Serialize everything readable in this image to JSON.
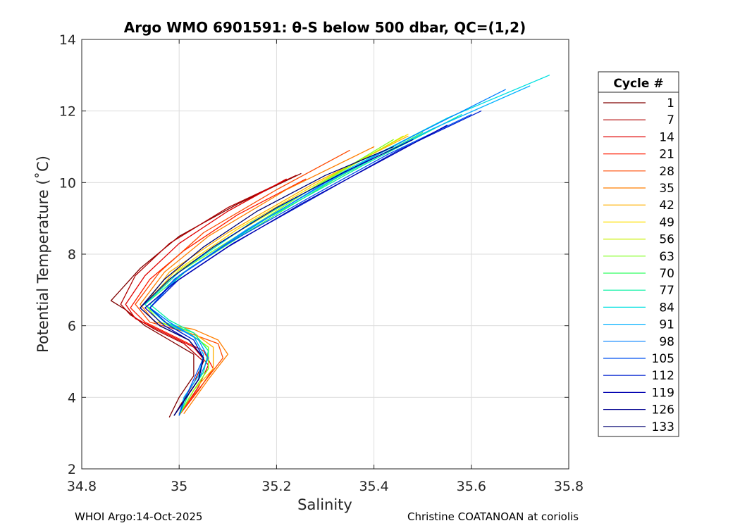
{
  "chart_data": {
    "type": "line",
    "title": "Argo WMO 6901591: θ-S below 500 dbar,  QC=(1,2)",
    "xlabel": "Salinity",
    "ylabel": "Potential Temperature (˚C)",
    "xlim": [
      34.8,
      35.8
    ],
    "ylim": [
      2,
      14
    ],
    "xticks": [
      34.8,
      35.0,
      35.2,
      35.4,
      35.6,
      35.8
    ],
    "xtick_labels": [
      "34.8",
      "35",
      "35.2",
      "35.4",
      "35.6",
      "35.8"
    ],
    "yticks": [
      2,
      4,
      6,
      8,
      10,
      12,
      14
    ],
    "ytick_labels": [
      "2",
      "4",
      "6",
      "8",
      "10",
      "12",
      "14"
    ],
    "grid": true,
    "legend_title": "Cycle #",
    "legend_position": "outside-right",
    "series": [
      {
        "name": "1",
        "color": "#800000",
        "points": [
          [
            35.25,
            10.25
          ],
          [
            35.12,
            9.4
          ],
          [
            35.0,
            8.5
          ],
          [
            34.92,
            7.6
          ],
          [
            34.86,
            6.7
          ],
          [
            34.89,
            6.45
          ],
          [
            34.93,
            6.0
          ],
          [
            34.98,
            5.6
          ],
          [
            35.03,
            5.2
          ],
          [
            35.03,
            4.6
          ],
          [
            35.0,
            4.0
          ],
          [
            34.98,
            3.45
          ]
        ]
      },
      {
        "name": "7",
        "color": "#B00000",
        "points": [
          [
            35.24,
            10.2
          ],
          [
            35.1,
            9.3
          ],
          [
            34.98,
            8.3
          ],
          [
            34.91,
            7.4
          ],
          [
            34.88,
            6.6
          ],
          [
            34.9,
            6.3
          ],
          [
            34.95,
            5.9
          ],
          [
            35.01,
            5.5
          ],
          [
            35.05,
            5.0
          ],
          [
            35.03,
            4.4
          ],
          [
            34.99,
            3.5
          ]
        ]
      },
      {
        "name": "14",
        "color": "#E00000",
        "points": [
          [
            35.22,
            10.1
          ],
          [
            35.1,
            9.2
          ],
          [
            35.0,
            8.3
          ],
          [
            34.93,
            7.4
          ],
          [
            34.89,
            6.6
          ],
          [
            34.91,
            6.2
          ],
          [
            34.97,
            5.8
          ],
          [
            35.03,
            5.4
          ],
          [
            35.06,
            4.9
          ],
          [
            35.04,
            4.3
          ],
          [
            35.0,
            3.5
          ]
        ]
      },
      {
        "name": "21",
        "color": "#FF1A00",
        "points": [
          [
            35.26,
            10.1
          ],
          [
            35.12,
            9.1
          ],
          [
            35.01,
            8.1
          ],
          [
            34.94,
            7.3
          ],
          [
            34.9,
            6.5
          ],
          [
            34.93,
            6.1
          ],
          [
            34.99,
            5.7
          ],
          [
            35.05,
            5.3
          ],
          [
            35.07,
            4.8
          ],
          [
            35.04,
            4.2
          ],
          [
            35.0,
            3.5
          ]
        ]
      },
      {
        "name": "28",
        "color": "#FF4A00",
        "points": [
          [
            35.35,
            10.9
          ],
          [
            35.2,
            9.8
          ],
          [
            35.05,
            8.6
          ],
          [
            34.96,
            7.5
          ],
          [
            34.91,
            6.6
          ],
          [
            34.94,
            6.1
          ],
          [
            35.02,
            5.8
          ],
          [
            35.08,
            5.5
          ],
          [
            35.09,
            5.1
          ],
          [
            35.05,
            4.4
          ],
          [
            35.0,
            3.55
          ]
        ]
      },
      {
        "name": "35",
        "color": "#FF7F00",
        "points": [
          [
            35.4,
            11.0
          ],
          [
            35.22,
            9.8
          ],
          [
            35.06,
            8.5
          ],
          [
            34.97,
            7.5
          ],
          [
            34.92,
            6.6
          ],
          [
            34.95,
            6.1
          ],
          [
            35.03,
            5.9
          ],
          [
            35.08,
            5.6
          ],
          [
            35.1,
            5.2
          ],
          [
            35.06,
            4.5
          ],
          [
            35.01,
            3.55
          ]
        ]
      },
      {
        "name": "42",
        "color": "#FFB000",
        "points": [
          [
            35.47,
            11.3
          ],
          [
            35.28,
            10.0
          ],
          [
            35.1,
            8.6
          ],
          [
            34.98,
            7.5
          ],
          [
            34.93,
            6.6
          ],
          [
            34.96,
            6.1
          ],
          [
            35.03,
            5.8
          ],
          [
            35.07,
            5.4
          ],
          [
            35.07,
            4.8
          ],
          [
            35.03,
            4.2
          ],
          [
            35.0,
            3.5
          ]
        ]
      },
      {
        "name": "49",
        "color": "#FFE000",
        "points": [
          [
            35.47,
            11.35
          ],
          [
            35.3,
            10.1
          ],
          [
            35.12,
            8.7
          ],
          [
            34.99,
            7.5
          ],
          [
            34.93,
            6.6
          ],
          [
            34.96,
            6.1
          ],
          [
            35.02,
            5.8
          ],
          [
            35.06,
            5.4
          ],
          [
            35.06,
            4.8
          ],
          [
            35.03,
            4.2
          ],
          [
            35.0,
            3.5
          ]
        ]
      },
      {
        "name": "56",
        "color": "#C8F000",
        "points": [
          [
            35.46,
            11.3
          ],
          [
            35.3,
            10.05
          ],
          [
            35.13,
            8.7
          ],
          [
            35.0,
            7.55
          ],
          [
            34.93,
            6.6
          ],
          [
            34.96,
            6.1
          ],
          [
            35.02,
            5.8
          ],
          [
            35.06,
            5.4
          ],
          [
            35.06,
            4.8
          ],
          [
            35.03,
            4.2
          ],
          [
            35.0,
            3.5
          ]
        ]
      },
      {
        "name": "63",
        "color": "#80FF20",
        "points": [
          [
            35.44,
            11.2
          ],
          [
            35.28,
            9.9
          ],
          [
            35.13,
            8.6
          ],
          [
            35.0,
            7.5
          ],
          [
            34.93,
            6.6
          ],
          [
            34.96,
            6.1
          ],
          [
            35.02,
            5.8
          ],
          [
            35.06,
            5.4
          ],
          [
            35.06,
            4.8
          ],
          [
            35.03,
            4.2
          ],
          [
            35.0,
            3.5
          ]
        ]
      },
      {
        "name": "70",
        "color": "#30FF60",
        "points": [
          [
            35.5,
            11.4
          ],
          [
            35.32,
            10.1
          ],
          [
            35.15,
            8.7
          ],
          [
            35.01,
            7.5
          ],
          [
            34.93,
            6.6
          ],
          [
            34.97,
            6.1
          ],
          [
            35.03,
            5.8
          ],
          [
            35.06,
            5.3
          ],
          [
            35.05,
            4.7
          ],
          [
            35.02,
            4.1
          ],
          [
            35.0,
            3.5
          ]
        ]
      },
      {
        "name": "77",
        "color": "#00F0A0",
        "points": [
          [
            35.58,
            11.9
          ],
          [
            35.38,
            10.5
          ],
          [
            35.18,
            9.0
          ],
          [
            35.02,
            7.6
          ],
          [
            34.94,
            6.6
          ],
          [
            34.98,
            6.15
          ],
          [
            35.03,
            5.8
          ],
          [
            35.06,
            5.3
          ],
          [
            35.05,
            4.7
          ],
          [
            35.02,
            4.1
          ],
          [
            35.0,
            3.5
          ]
        ]
      },
      {
        "name": "84",
        "color": "#00E0E0",
        "points": [
          [
            35.76,
            13.0
          ],
          [
            35.55,
            11.8
          ],
          [
            35.35,
            10.4
          ],
          [
            35.15,
            8.9
          ],
          [
            35.0,
            7.5
          ],
          [
            34.93,
            6.6
          ],
          [
            34.97,
            6.1
          ],
          [
            35.03,
            5.7
          ],
          [
            35.05,
            5.2
          ],
          [
            35.04,
            4.6
          ],
          [
            35.01,
            4.0
          ],
          [
            35.0,
            3.5
          ]
        ]
      },
      {
        "name": "91",
        "color": "#00B0FF",
        "points": [
          [
            35.72,
            12.7
          ],
          [
            35.52,
            11.5
          ],
          [
            35.33,
            10.2
          ],
          [
            35.14,
            8.7
          ],
          [
            35.0,
            7.4
          ],
          [
            34.94,
            6.5
          ],
          [
            34.98,
            6.1
          ],
          [
            35.03,
            5.7
          ],
          [
            35.05,
            5.2
          ],
          [
            35.04,
            4.6
          ],
          [
            35.01,
            4.0
          ],
          [
            35.0,
            3.5
          ]
        ]
      },
      {
        "name": "98",
        "color": "#0080FF",
        "points": [
          [
            35.67,
            12.6
          ],
          [
            35.48,
            11.3
          ],
          [
            35.3,
            10.0
          ],
          [
            35.12,
            8.5
          ],
          [
            35.0,
            7.4
          ],
          [
            34.94,
            6.5
          ],
          [
            34.99,
            6.0
          ],
          [
            35.04,
            5.6
          ],
          [
            35.06,
            5.1
          ],
          [
            35.04,
            4.5
          ],
          [
            35.01,
            3.9
          ],
          [
            35.0,
            3.5
          ]
        ]
      },
      {
        "name": "105",
        "color": "#0050F0",
        "points": [
          [
            35.6,
            11.9
          ],
          [
            35.43,
            10.8
          ],
          [
            35.27,
            9.6
          ],
          [
            35.1,
            8.3
          ],
          [
            34.99,
            7.3
          ],
          [
            34.94,
            6.5
          ],
          [
            34.98,
            6.0
          ],
          [
            35.03,
            5.6
          ],
          [
            35.05,
            5.1
          ],
          [
            35.03,
            4.5
          ],
          [
            35.01,
            3.9
          ],
          [
            35.0,
            3.5
          ]
        ]
      },
      {
        "name": "112",
        "color": "#0020D0",
        "points": [
          [
            35.62,
            12.0
          ],
          [
            35.45,
            10.9
          ],
          [
            35.28,
            9.6
          ],
          [
            35.11,
            8.3
          ],
          [
            35.0,
            7.3
          ],
          [
            34.94,
            6.5
          ],
          [
            34.98,
            6.0
          ],
          [
            35.03,
            5.6
          ],
          [
            35.05,
            5.1
          ],
          [
            35.04,
            4.5
          ],
          [
            35.01,
            3.9
          ],
          [
            34.99,
            3.5
          ]
        ]
      },
      {
        "name": "119",
        "color": "#0000B0",
        "points": [
          [
            35.55,
            11.6
          ],
          [
            35.4,
            10.5
          ],
          [
            35.25,
            9.4
          ],
          [
            35.1,
            8.2
          ],
          [
            34.99,
            7.2
          ],
          [
            34.93,
            6.5
          ],
          [
            34.97,
            6.0
          ],
          [
            35.02,
            5.6
          ],
          [
            35.05,
            5.1
          ],
          [
            35.04,
            4.5
          ],
          [
            35.01,
            3.9
          ],
          [
            34.99,
            3.5
          ]
        ]
      },
      {
        "name": "126",
        "color": "#000090",
        "points": [
          [
            35.48,
            11.2
          ],
          [
            35.34,
            10.3
          ],
          [
            35.2,
            9.3
          ],
          [
            35.07,
            8.2
          ],
          [
            34.98,
            7.3
          ],
          [
            34.92,
            6.5
          ],
          [
            34.96,
            6.0
          ],
          [
            35.02,
            5.6
          ],
          [
            35.05,
            5.1
          ],
          [
            35.04,
            4.5
          ],
          [
            35.01,
            3.9
          ],
          [
            34.99,
            3.5
          ]
        ]
      },
      {
        "name": "133",
        "color": "#000070",
        "points": [
          [
            35.44,
            11.0
          ],
          [
            35.3,
            10.2
          ],
          [
            35.16,
            9.2
          ],
          [
            35.05,
            8.2
          ],
          [
            34.97,
            7.3
          ],
          [
            34.92,
            6.5
          ],
          [
            34.96,
            6.0
          ],
          [
            35.02,
            5.6
          ],
          [
            35.05,
            5.1
          ],
          [
            35.04,
            4.5
          ],
          [
            35.01,
            3.9
          ],
          [
            34.99,
            3.5
          ]
        ]
      }
    ]
  },
  "footer": {
    "left": "WHOI Argo:14-Oct-2025",
    "right": "Christine COATANOAN at coriolis"
  }
}
